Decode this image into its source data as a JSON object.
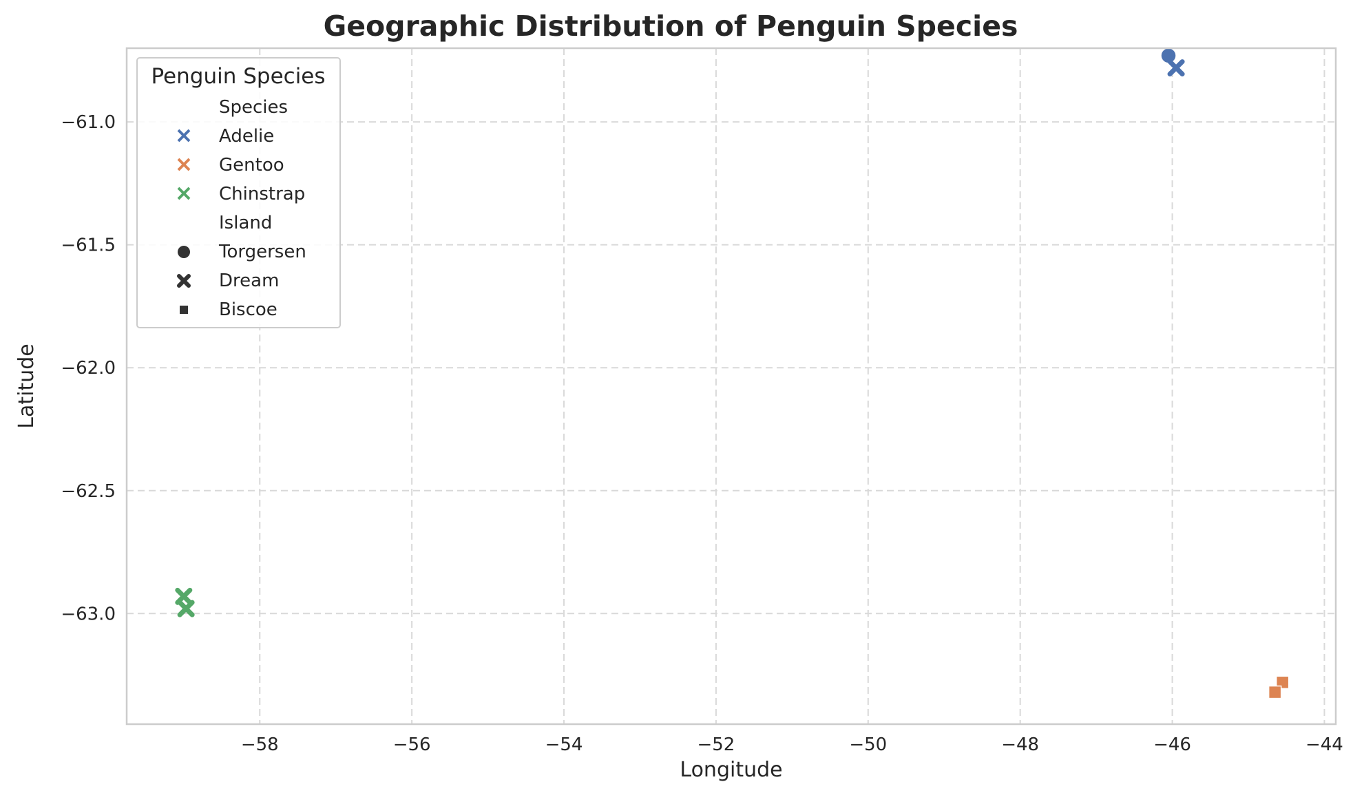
{
  "chart_data": {
    "type": "scatter",
    "title": "Geographic Distribution of Penguin Species",
    "xlabel": "Longitude",
    "ylabel": "Latitude",
    "xlim": [
      -59.75,
      -43.85
    ],
    "ylim": [
      -63.45,
      -60.7
    ],
    "xticks": [
      -58,
      -56,
      -54,
      -52,
      -50,
      -48,
      -46,
      -44
    ],
    "yticks": [
      -61.0,
      -61.5,
      -62.0,
      -62.5,
      -63.0
    ],
    "xtick_labels": [
      "−58",
      "−56",
      "−54",
      "−52",
      "−50",
      "−48",
      "−46",
      "−44"
    ],
    "ytick_labels": [
      "−61.0",
      "−61.5",
      "−62.0",
      "−62.5",
      "−63.0"
    ],
    "grid": true,
    "legend": {
      "title": "Penguin Species",
      "location": "upper-left",
      "hue_heading": "Species",
      "hue_items": [
        {
          "label": "Adelie",
          "color": "#4c72b0"
        },
        {
          "label": "Gentoo",
          "color": "#dd8452"
        },
        {
          "label": "Chinstrap",
          "color": "#55a868"
        }
      ],
      "style_heading": "Island",
      "style_items": [
        {
          "label": "Torgersen",
          "marker": "circle"
        },
        {
          "label": "Dream",
          "marker": "x"
        },
        {
          "label": "Biscoe",
          "marker": "square"
        }
      ]
    },
    "points": [
      {
        "species": "Adelie",
        "island": "Torgersen",
        "x": -46.05,
        "y": -60.73
      },
      {
        "species": "Adelie",
        "island": "Dream",
        "x": -45.95,
        "y": -60.78
      },
      {
        "species": "Gentoo",
        "island": "Biscoe",
        "x": -44.55,
        "y": -63.28
      },
      {
        "species": "Gentoo",
        "island": "Biscoe",
        "x": -44.65,
        "y": -63.32
      },
      {
        "species": "Chinstrap",
        "island": "Dream",
        "x": -59.0,
        "y": -62.93
      },
      {
        "species": "Chinstrap",
        "island": "Dream",
        "x": -58.97,
        "y": -62.98
      }
    ]
  }
}
